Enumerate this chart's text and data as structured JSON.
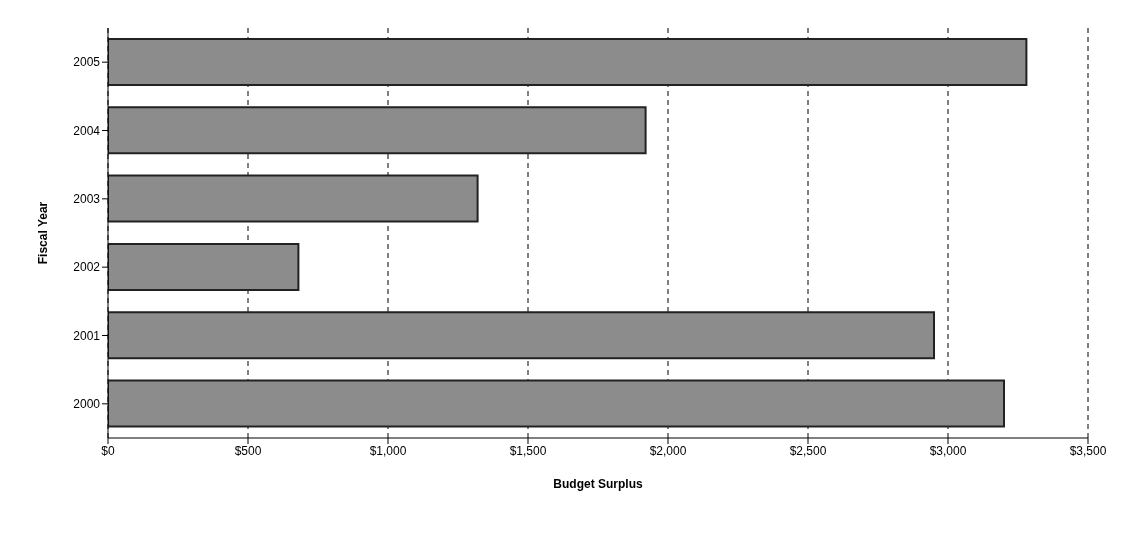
{
  "chart_data": {
    "type": "bar",
    "orientation": "horizontal",
    "xlabel": "Budget Surplus",
    "ylabel": "Fiscal Year",
    "categories": [
      "2005",
      "2004",
      "2003",
      "2002",
      "2001",
      "2000"
    ],
    "values": [
      3280,
      1920,
      1320,
      680,
      2950,
      3200
    ],
    "color": "#8c8c8c",
    "xlim": [
      0,
      3500
    ],
    "xticks": [
      {
        "value": 0,
        "label": "$0"
      },
      {
        "value": 500,
        "label": "$500"
      },
      {
        "value": 1000,
        "label": "$1,000"
      },
      {
        "value": 1500,
        "label": "$1,500"
      },
      {
        "value": 2000,
        "label": "$2,000"
      },
      {
        "value": 2500,
        "label": "$2,500"
      },
      {
        "value": 3000,
        "label": "$3,000"
      },
      {
        "value": 3500,
        "label": "$3,500"
      }
    ],
    "grid": "x",
    "legend": false
  }
}
